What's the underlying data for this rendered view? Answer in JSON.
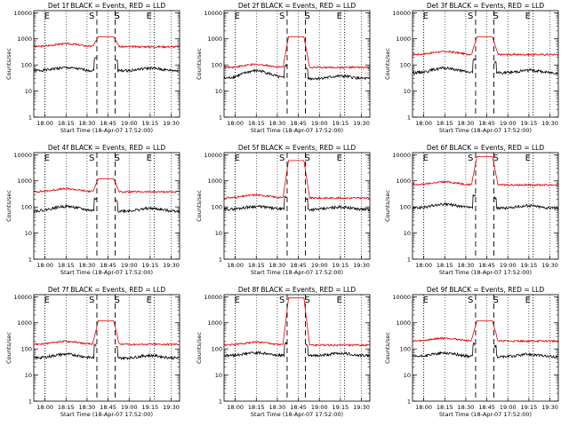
{
  "chart_data": {
    "type": "line",
    "grid": "3x3",
    "y_scale": "log",
    "ylim": [
      1,
      12000
    ],
    "y_ticks": [
      1,
      10,
      100,
      1000,
      10000
    ],
    "y_tick_labels": [
      "1",
      "10",
      "100",
      "1000",
      "10000"
    ],
    "ylabel": "Counts/sec",
    "xlabel": "Start Time (18-Apr-07 17:52:00)",
    "x_ticks": [
      "18:00",
      "18:15",
      "18:30",
      "18:45",
      "19:00",
      "19:15",
      "19:30"
    ],
    "x_range_minutes_after_1800": [
      -8,
      96
    ],
    "interval_markers": [
      {
        "label": "E",
        "line": "dotted",
        "time": "18:00"
      },
      {
        "label": "S",
        "line": "dashed",
        "time": "18:37"
      },
      {
        "label": "S",
        "line": "dashed",
        "time": "18:50"
      },
      {
        "label": "E",
        "line": "dotted",
        "time": "19:18"
      }
    ],
    "series_colors": {
      "events": "#000000",
      "lld": "#e00000"
    },
    "panels": [
      {
        "title": "Det 1f BLACK = Events, RED = LLD",
        "events_level": 60,
        "lld_level": 500,
        "lld_peak": 1200,
        "event_hump": 1.3
      },
      {
        "title": "Det 2f BLACK = Events, RED = LLD",
        "events_level": 30,
        "lld_level": 80,
        "lld_peak": 1200,
        "event_hump": 2.0
      },
      {
        "title": "Det 3f BLACK = Events, RED = LLD",
        "events_level": 50,
        "lld_level": 250,
        "lld_peak": 1200,
        "event_hump": 1.5
      },
      {
        "title": "Det 4f BLACK = Events, RED = LLD",
        "events_level": 70,
        "lld_level": 380,
        "lld_peak": 1200,
        "event_hump": 1.5
      },
      {
        "title": "Det 5f BLACK = Events, RED = LLD",
        "events_level": 80,
        "lld_level": 220,
        "lld_peak": 6000,
        "event_hump": 1.3
      },
      {
        "title": "Det 6f BLACK = Events, RED = LLD",
        "events_level": 90,
        "lld_level": 700,
        "lld_peak": 8500,
        "event_hump": 1.4
      },
      {
        "title": "Det 7f BLACK = Events, RED = LLD",
        "events_level": 45,
        "lld_level": 150,
        "lld_peak": 1200,
        "event_hump": 1.4
      },
      {
        "title": "Det 8f BLACK = Events, RED = LLD",
        "events_level": 55,
        "lld_level": 140,
        "lld_peak": 9000,
        "event_hump": 1.3
      },
      {
        "title": "Det 9f BLACK = Events, RED = LLD",
        "events_level": 50,
        "lld_level": 200,
        "lld_peak": 1200,
        "event_hump": 1.4
      }
    ]
  }
}
